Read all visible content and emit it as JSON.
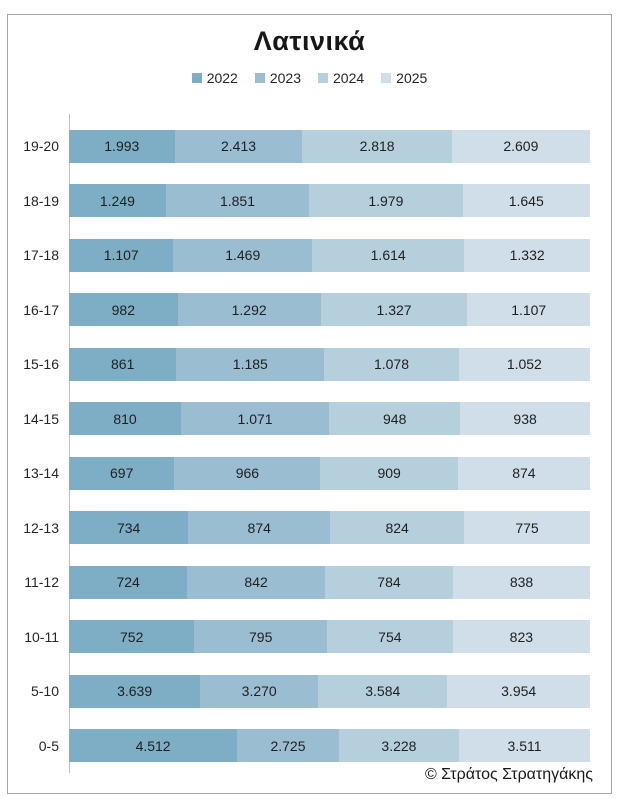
{
  "footer": "© Στράτος Στρατηγάκης",
  "chart_data": {
    "type": "bar",
    "subtype": "horizontal-100pct-stacked",
    "title": "Λατινικά",
    "xlabel": "",
    "ylabel": "",
    "grid": false,
    "legend_position": "top-center",
    "axis_line_color": "#bfbfbf",
    "frame_border_color": "#a6a6a6",
    "categories": [
      "19-20",
      "18-19",
      "17-18",
      "16-17",
      "15-16",
      "14-15",
      "13-14",
      "12-13",
      "11-12",
      "10-11",
      "5-10",
      "0-5"
    ],
    "series": [
      {
        "name": "2022",
        "color": "#7eadc6",
        "values": [
          1993,
          1249,
          1107,
          982,
          861,
          810,
          697,
          734,
          724,
          752,
          3639,
          4512
        ],
        "labels": [
          "1.993",
          "1.249",
          "1.107",
          "982",
          "861",
          "810",
          "697",
          "734",
          "724",
          "752",
          "3.639",
          "4.512"
        ]
      },
      {
        "name": "2023",
        "color": "#9bbdd2",
        "values": [
          2413,
          1851,
          1469,
          1292,
          1185,
          1071,
          966,
          874,
          842,
          795,
          3270,
          2725
        ],
        "labels": [
          "2.413",
          "1.851",
          "1.469",
          "1.292",
          "1.185",
          "1.071",
          "966",
          "874",
          "842",
          "795",
          "3.270",
          "2.725"
        ]
      },
      {
        "name": "2024",
        "color": "#b6cfdd",
        "values": [
          2818,
          1979,
          1614,
          1327,
          1078,
          948,
          909,
          824,
          784,
          754,
          3584,
          3228
        ],
        "labels": [
          "2.818",
          "1.979",
          "1.614",
          "1.327",
          "1.078",
          "948",
          "909",
          "824",
          "784",
          "754",
          "3.584",
          "3.228"
        ]
      },
      {
        "name": "2025",
        "color": "#cfdee9",
        "values": [
          2609,
          1645,
          1332,
          1107,
          1052,
          938,
          874,
          775,
          838,
          823,
          3954,
          3511
        ],
        "labels": [
          "2.609",
          "1.645",
          "1.332",
          "1.107",
          "1.052",
          "938",
          "874",
          "775",
          "838",
          "823",
          "3.954",
          "3.511"
        ]
      }
    ]
  }
}
